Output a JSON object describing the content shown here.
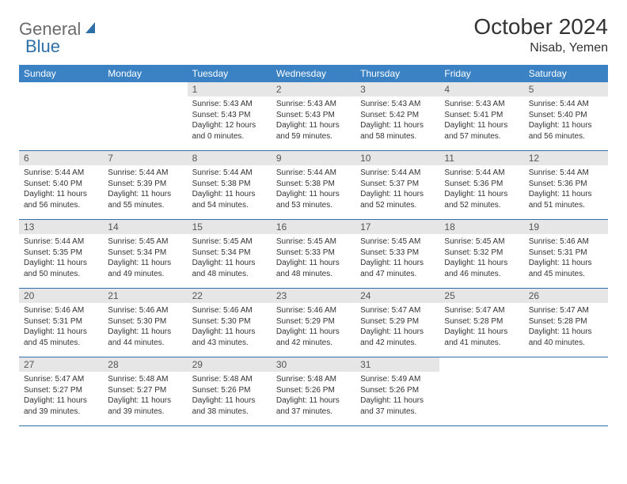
{
  "brand": {
    "part1": "General",
    "part2": "Blue"
  },
  "title": "October 2024",
  "location": "Nisab, Yemen",
  "colors": {
    "header_bg": "#3b82c4",
    "daynum_bg": "#e6e6e6",
    "border": "#2f6fa8",
    "logo_gray": "#6b6b6b",
    "logo_blue": "#2f6fa8"
  },
  "weekdays": [
    "Sunday",
    "Monday",
    "Tuesday",
    "Wednesday",
    "Thursday",
    "Friday",
    "Saturday"
  ],
  "weeks": [
    [
      {
        "n": "",
        "sunrise": "",
        "sunset": "",
        "day": ""
      },
      {
        "n": "",
        "sunrise": "",
        "sunset": "",
        "day": ""
      },
      {
        "n": "1",
        "sunrise": "Sunrise: 5:43 AM",
        "sunset": "Sunset: 5:43 PM",
        "day": "Daylight: 12 hours and 0 minutes."
      },
      {
        "n": "2",
        "sunrise": "Sunrise: 5:43 AM",
        "sunset": "Sunset: 5:43 PM",
        "day": "Daylight: 11 hours and 59 minutes."
      },
      {
        "n": "3",
        "sunrise": "Sunrise: 5:43 AM",
        "sunset": "Sunset: 5:42 PM",
        "day": "Daylight: 11 hours and 58 minutes."
      },
      {
        "n": "4",
        "sunrise": "Sunrise: 5:43 AM",
        "sunset": "Sunset: 5:41 PM",
        "day": "Daylight: 11 hours and 57 minutes."
      },
      {
        "n": "5",
        "sunrise": "Sunrise: 5:44 AM",
        "sunset": "Sunset: 5:40 PM",
        "day": "Daylight: 11 hours and 56 minutes."
      }
    ],
    [
      {
        "n": "6",
        "sunrise": "Sunrise: 5:44 AM",
        "sunset": "Sunset: 5:40 PM",
        "day": "Daylight: 11 hours and 56 minutes."
      },
      {
        "n": "7",
        "sunrise": "Sunrise: 5:44 AM",
        "sunset": "Sunset: 5:39 PM",
        "day": "Daylight: 11 hours and 55 minutes."
      },
      {
        "n": "8",
        "sunrise": "Sunrise: 5:44 AM",
        "sunset": "Sunset: 5:38 PM",
        "day": "Daylight: 11 hours and 54 minutes."
      },
      {
        "n": "9",
        "sunrise": "Sunrise: 5:44 AM",
        "sunset": "Sunset: 5:38 PM",
        "day": "Daylight: 11 hours and 53 minutes."
      },
      {
        "n": "10",
        "sunrise": "Sunrise: 5:44 AM",
        "sunset": "Sunset: 5:37 PM",
        "day": "Daylight: 11 hours and 52 minutes."
      },
      {
        "n": "11",
        "sunrise": "Sunrise: 5:44 AM",
        "sunset": "Sunset: 5:36 PM",
        "day": "Daylight: 11 hours and 52 minutes."
      },
      {
        "n": "12",
        "sunrise": "Sunrise: 5:44 AM",
        "sunset": "Sunset: 5:36 PM",
        "day": "Daylight: 11 hours and 51 minutes."
      }
    ],
    [
      {
        "n": "13",
        "sunrise": "Sunrise: 5:44 AM",
        "sunset": "Sunset: 5:35 PM",
        "day": "Daylight: 11 hours and 50 minutes."
      },
      {
        "n": "14",
        "sunrise": "Sunrise: 5:45 AM",
        "sunset": "Sunset: 5:34 PM",
        "day": "Daylight: 11 hours and 49 minutes."
      },
      {
        "n": "15",
        "sunrise": "Sunrise: 5:45 AM",
        "sunset": "Sunset: 5:34 PM",
        "day": "Daylight: 11 hours and 48 minutes."
      },
      {
        "n": "16",
        "sunrise": "Sunrise: 5:45 AM",
        "sunset": "Sunset: 5:33 PM",
        "day": "Daylight: 11 hours and 48 minutes."
      },
      {
        "n": "17",
        "sunrise": "Sunrise: 5:45 AM",
        "sunset": "Sunset: 5:33 PM",
        "day": "Daylight: 11 hours and 47 minutes."
      },
      {
        "n": "18",
        "sunrise": "Sunrise: 5:45 AM",
        "sunset": "Sunset: 5:32 PM",
        "day": "Daylight: 11 hours and 46 minutes."
      },
      {
        "n": "19",
        "sunrise": "Sunrise: 5:46 AM",
        "sunset": "Sunset: 5:31 PM",
        "day": "Daylight: 11 hours and 45 minutes."
      }
    ],
    [
      {
        "n": "20",
        "sunrise": "Sunrise: 5:46 AM",
        "sunset": "Sunset: 5:31 PM",
        "day": "Daylight: 11 hours and 45 minutes."
      },
      {
        "n": "21",
        "sunrise": "Sunrise: 5:46 AM",
        "sunset": "Sunset: 5:30 PM",
        "day": "Daylight: 11 hours and 44 minutes."
      },
      {
        "n": "22",
        "sunrise": "Sunrise: 5:46 AM",
        "sunset": "Sunset: 5:30 PM",
        "day": "Daylight: 11 hours and 43 minutes."
      },
      {
        "n": "23",
        "sunrise": "Sunrise: 5:46 AM",
        "sunset": "Sunset: 5:29 PM",
        "day": "Daylight: 11 hours and 42 minutes."
      },
      {
        "n": "24",
        "sunrise": "Sunrise: 5:47 AM",
        "sunset": "Sunset: 5:29 PM",
        "day": "Daylight: 11 hours and 42 minutes."
      },
      {
        "n": "25",
        "sunrise": "Sunrise: 5:47 AM",
        "sunset": "Sunset: 5:28 PM",
        "day": "Daylight: 11 hours and 41 minutes."
      },
      {
        "n": "26",
        "sunrise": "Sunrise: 5:47 AM",
        "sunset": "Sunset: 5:28 PM",
        "day": "Daylight: 11 hours and 40 minutes."
      }
    ],
    [
      {
        "n": "27",
        "sunrise": "Sunrise: 5:47 AM",
        "sunset": "Sunset: 5:27 PM",
        "day": "Daylight: 11 hours and 39 minutes."
      },
      {
        "n": "28",
        "sunrise": "Sunrise: 5:48 AM",
        "sunset": "Sunset: 5:27 PM",
        "day": "Daylight: 11 hours and 39 minutes."
      },
      {
        "n": "29",
        "sunrise": "Sunrise: 5:48 AM",
        "sunset": "Sunset: 5:26 PM",
        "day": "Daylight: 11 hours and 38 minutes."
      },
      {
        "n": "30",
        "sunrise": "Sunrise: 5:48 AM",
        "sunset": "Sunset: 5:26 PM",
        "day": "Daylight: 11 hours and 37 minutes."
      },
      {
        "n": "31",
        "sunrise": "Sunrise: 5:49 AM",
        "sunset": "Sunset: 5:26 PM",
        "day": "Daylight: 11 hours and 37 minutes."
      },
      {
        "n": "",
        "sunrise": "",
        "sunset": "",
        "day": ""
      },
      {
        "n": "",
        "sunrise": "",
        "sunset": "",
        "day": ""
      }
    ]
  ]
}
